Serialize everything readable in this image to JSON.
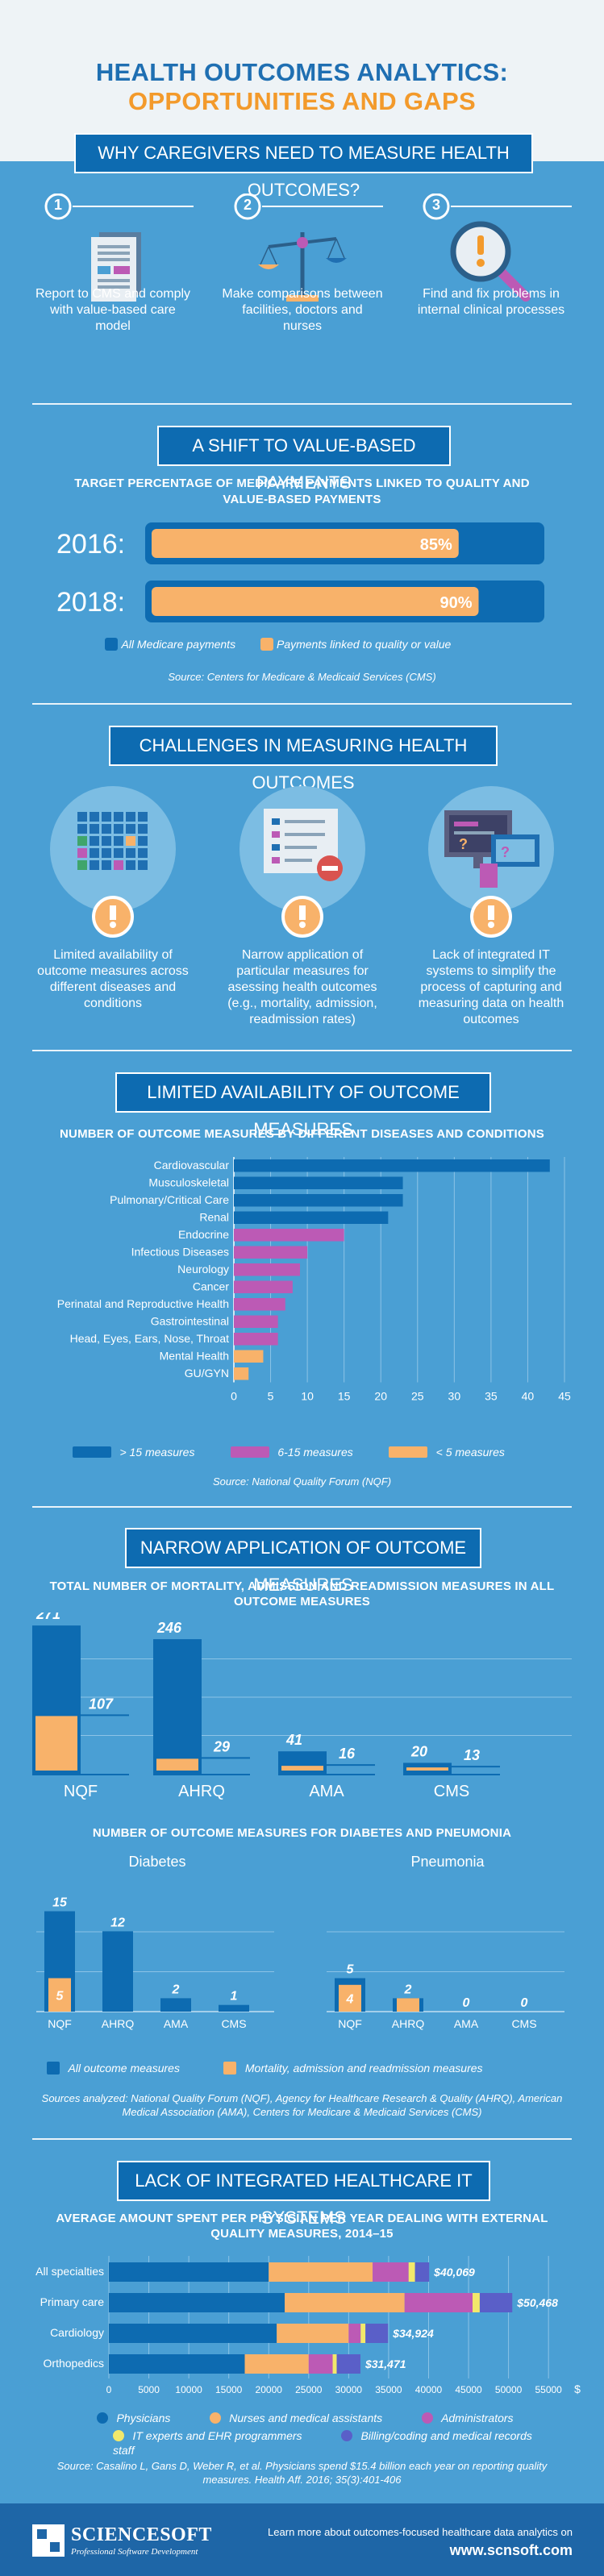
{
  "header": {
    "title_part1": "HEALTH OUTCOMES ANALYTICS: ",
    "title_part2": "OPPORTUNITIES AND GAPS"
  },
  "colors": {
    "background": "#4a9fd4",
    "dark_blue": "#0d6bb1",
    "orange": "#f8b26a",
    "purple": "#bc5ab5",
    "yellow": "#f2e86b",
    "violet": "#5a5fc8"
  },
  "section1": {
    "banner": "WHY CAREGIVERS NEED TO MEASURE HEALTH OUTCOMES?",
    "items": [
      {
        "num": "1",
        "icon": "document-icon",
        "text": "Report to CMS and comply with value-based care model"
      },
      {
        "num": "2",
        "icon": "scales-icon",
        "text": "Make comparisons between facilities, doctors and nurses"
      },
      {
        "num": "3",
        "icon": "magnifier-icon",
        "text": "Find and fix problems in internal clinical processes"
      }
    ]
  },
  "section2": {
    "banner": "A SHIFT TO VALUE-BASED PAYMENTS",
    "subtitle": "TARGET PERCENTAGE OF MEDICARE PAYMENTS LINKED TO QUALITY AND VALUE-BASED PAYMENTS",
    "legend_all": "All Medicare payments",
    "legend_linked": "Payments linked to quality or value",
    "source": "Source: Centers for Medicare & Medicaid Services (CMS)"
  },
  "section3": {
    "banner": "CHALLENGES IN MEASURING HEALTH OUTCOMES",
    "items": [
      {
        "icon": "grid-icon",
        "text": "Limited availability of outcome measures across different diseases and conditions"
      },
      {
        "icon": "list-icon",
        "text": "Narrow application of particular measures for asessing health outcomes (e.g., mortality, admission, readmission rates)"
      },
      {
        "icon": "monitor-icon",
        "text": "Lack of integrated IT systems to simplify the process of capturing and measuring data on health outcomes"
      }
    ]
  },
  "section4": {
    "banner": "LIMITED AVAILABILITY OF OUTCOME MEASURES",
    "legend": [
      "> 15 measures",
      "6-15 measures",
      "< 5 measures"
    ],
    "source": "Source: National Quality Forum (NQF)"
  },
  "section5": {
    "banner": "NARROW APPLICATION OF OUTCOME MEASURES",
    "legend_all": "All outcome measures",
    "legend_mar": "Mortality, admission and readmission measures",
    "sources": "Sources analyzed: National Quality Forum (NQF), Agency for Healthcare Research & Quality (AHRQ), American Medical Association (AMA), Centers for Medicare & Medicaid Services (CMS)"
  },
  "section6": {
    "banner": "LACK OF INTEGRATED HEALTHCARE IT SYSTEMS",
    "source": "Source: Casalino L, Gans D, Weber R, et al. Physicians spend $15.4 billion each year on reporting quality measures. Health Aff. 2016; 35(3):401-406"
  },
  "footer": {
    "logo_name": "SCIENCESOFT",
    "logo_tagline": "Professional Software Development",
    "text": "Learn more about outcomes-focused healthcare data analytics on",
    "url": "www.scnsoft.com"
  },
  "chart_data": [
    {
      "type": "bar",
      "title": "TARGET PERCENTAGE OF MEDICARE PAYMENTS LINKED TO QUALITY AND VALUE-BASED PAYMENTS",
      "categories": [
        "2016:",
        "2018:"
      ],
      "series": [
        {
          "name": "All Medicare payments",
          "values": [
            100,
            100
          ]
        },
        {
          "name": "Payments linked to quality or value",
          "values": [
            85,
            90
          ],
          "labels": [
            "85%",
            "90%"
          ]
        }
      ]
    },
    {
      "type": "bar",
      "title": "NUMBER OF OUTCOME MEASURES BY DIFFERENT DISEASES AND CONDITIONS",
      "categories": [
        "Cardiovascular",
        "Musculoskeletal",
        "Pulmonary/Critical Care",
        "Renal",
        "Endocrine",
        "Infectious Diseases",
        "Neurology",
        "Cancer",
        "Perinatal and Reproductive Health",
        "Gastrointestinal",
        "Head, Eyes, Ears, Nose, Throat",
        "Mental Health",
        "GU/GYN"
      ],
      "values": [
        43,
        23,
        23,
        21,
        15,
        10,
        9,
        8,
        7,
        6,
        6,
        4,
        2
      ],
      "xlim": [
        0,
        45
      ],
      "xticks": [
        0,
        5,
        10,
        15,
        20,
        25,
        30,
        35,
        40,
        45
      ]
    },
    {
      "type": "bar",
      "title": "TOTAL NUMBER OF MORTALITY, ADMISSION AND READMISSION MEASURES IN ALL OUTCOME MEASURES",
      "categories": [
        "NQF",
        "AHRQ",
        "AMA",
        "CMS"
      ],
      "series": [
        {
          "name": "All outcome measures",
          "values": [
            271,
            246,
            41,
            20
          ]
        },
        {
          "name": "Mortality, admission and readmission measures",
          "values": [
            107,
            29,
            16,
            13
          ]
        }
      ]
    },
    {
      "type": "bar",
      "title": "NUMBER OF OUTCOME MEASURES FOR DIABETES AND PNEUMONIA",
      "panels": [
        {
          "name": "Diabetes",
          "categories": [
            "NQF",
            "AHRQ",
            "AMA",
            "CMS"
          ],
          "all": [
            15,
            12,
            2,
            1
          ],
          "mar": [
            5,
            null,
            null,
            null
          ]
        },
        {
          "name": "Pneumonia",
          "categories": [
            "NQF",
            "AHRQ",
            "AMA",
            "CMS"
          ],
          "all": [
            5,
            2,
            0,
            0
          ],
          "mar": [
            4,
            2,
            null,
            null
          ]
        }
      ]
    },
    {
      "type": "bar",
      "title": "AVERAGE AMOUNT SPENT PER PHYSICIAN PER YEAR DEALING WITH EXTERNAL QUALITY MEASURES, 2014–15",
      "categories": [
        "All specialties",
        "Primary care",
        "Cardiology",
        "Orthopedics"
      ],
      "series": [
        {
          "name": "Physicians",
          "values": [
            20000,
            22000,
            21000,
            17000
          ]
        },
        {
          "name": "Nurses and medical assistants",
          "values": [
            13000,
            15000,
            9000,
            8000
          ]
        },
        {
          "name": "Administrators",
          "values": [
            4500,
            8500,
            1500,
            3000
          ]
        },
        {
          "name": "IT experts and EHR programmers",
          "values": [
            800,
            900,
            600,
            500
          ]
        },
        {
          "name": "Billing/coding and medical records staff",
          "values": [
            1769,
            4068,
            2824,
            2971
          ]
        }
      ],
      "totals_labels": [
        "$40,069",
        "$50,468",
        "$34,924",
        "$31,471"
      ],
      "xticks": [
        0,
        5000,
        10000,
        15000,
        20000,
        25000,
        30000,
        35000,
        40000,
        45000,
        50000,
        55000
      ],
      "xlim": [
        0,
        57000
      ],
      "unit": "$"
    }
  ]
}
